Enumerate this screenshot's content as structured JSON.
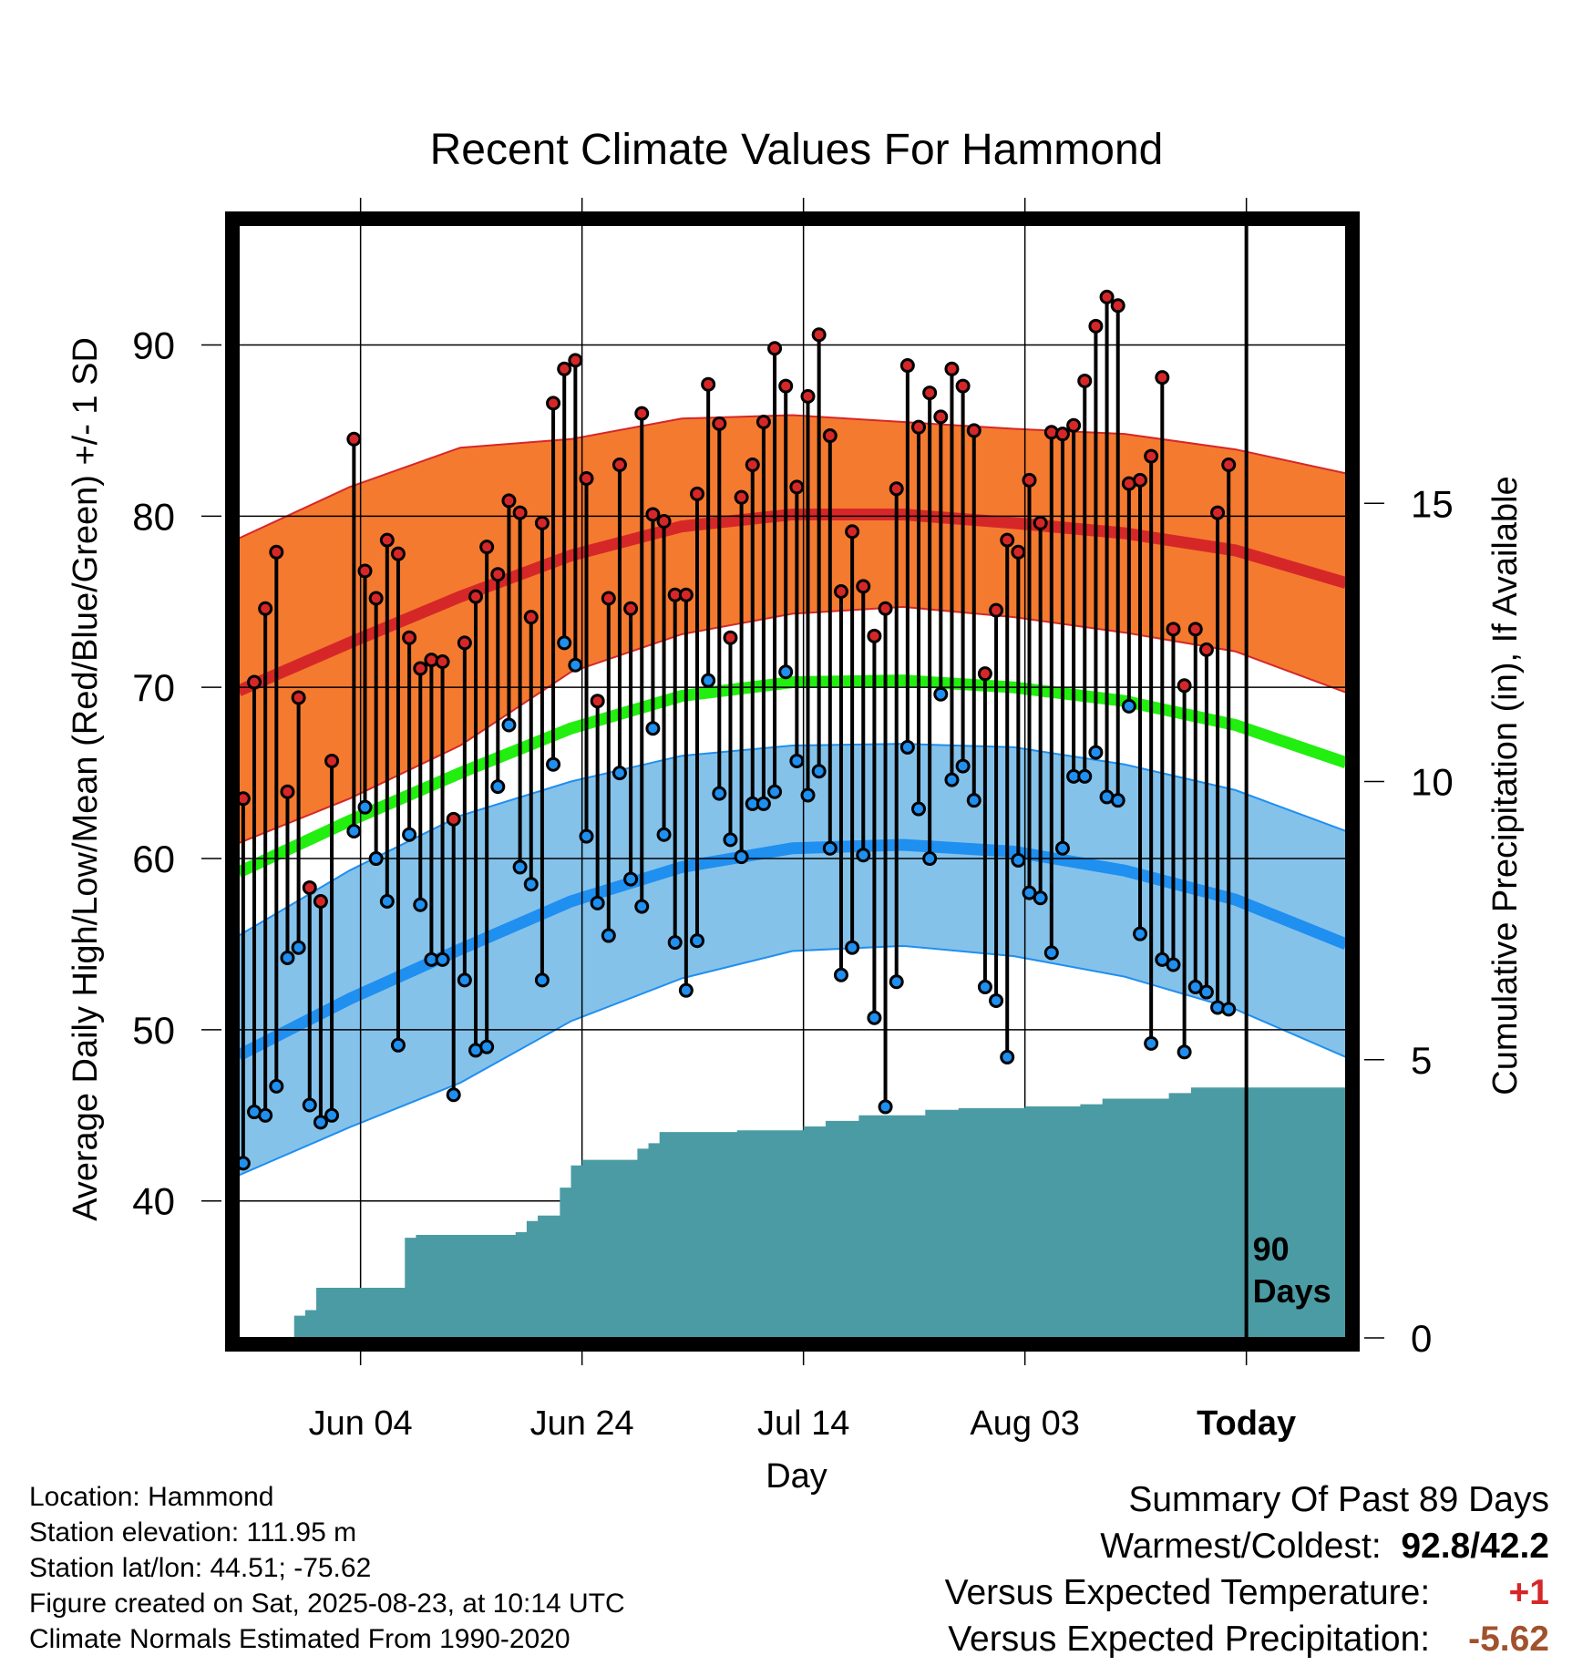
{
  "chart_data": {
    "type": "line",
    "title": "Recent Climate Values For Hammond",
    "xlabel": "Day",
    "ylabel": "Average Daily High/Low/Mean (Red/Blue/Green) +/- 1 SD",
    "y2label": "Cumulative Precipitation (in), If Available",
    "xticks": [
      "Jun 04",
      "Jun 24",
      "Jul 14",
      "Aug 03",
      "Today"
    ],
    "xtick_days": [
      11,
      31,
      51,
      71,
      91
    ],
    "xlim": [
      0,
      100
    ],
    "ylim": [
      32,
      97
    ],
    "yticks": [
      40,
      50,
      60,
      70,
      80,
      90
    ],
    "y2lim": [
      0,
      20
    ],
    "y2ticks": [
      0,
      5,
      10,
      15
    ],
    "marker_label": "90 Days",
    "grid": true,
    "colors": {
      "high": "#d62728",
      "high_band": "#f47a30",
      "low": "#1f8ff0",
      "low_band": "#85c2ea",
      "mean": "#22ee0f",
      "precip": "#4b9ba4",
      "high_dot": "#d62728",
      "low_dot": "#1f8ff0"
    },
    "normals": {
      "x": [
        0,
        10,
        20,
        30,
        40,
        50,
        60,
        70,
        80,
        90,
        100
      ],
      "high_mean": [
        69.8,
        72.6,
        75.3,
        77.7,
        79.4,
        80.1,
        80.1,
        79.6,
        79.0,
        78.0,
        76.1
      ],
      "high_sd": [
        8.9,
        9.1,
        8.7,
        6.8,
        6.3,
        5.8,
        5.4,
        5.5,
        5.8,
        5.9,
        6.4
      ],
      "low_mean": [
        48.5,
        51.8,
        54.7,
        57.5,
        59.5,
        60.6,
        60.8,
        60.4,
        59.3,
        57.6,
        55.0
      ],
      "low_sd": [
        7.0,
        7.5,
        7.8,
        7.0,
        6.5,
        6.0,
        5.9,
        6.1,
        6.2,
        6.4,
        6.6
      ],
      "mean": [
        59.2,
        62.2,
        65.0,
        67.6,
        69.5,
        70.3,
        70.4,
        70.0,
        69.2,
        67.8,
        65.6
      ]
    },
    "daily": {
      "high": [
        63.5,
        70.3,
        74.6,
        77.9,
        63.9,
        69.4,
        58.3,
        57.5,
        65.7,
        null,
        84.5,
        76.8,
        75.2,
        78.6,
        77.8,
        72.9,
        71.1,
        71.6,
        71.5,
        62.3,
        72.6,
        75.3,
        78.2,
        76.6,
        80.9,
        80.2,
        74.1,
        79.6,
        86.6,
        88.6,
        89.1,
        82.2,
        69.2,
        75.2,
        83.0,
        74.6,
        86.0,
        80.1,
        79.7,
        75.4,
        75.4,
        81.3,
        87.7,
        85.4,
        72.9,
        81.1,
        83.0,
        85.5,
        89.8,
        87.6,
        81.7,
        87.0,
        90.6,
        84.7,
        75.6,
        79.1,
        75.9,
        73.0,
        74.6,
        81.6,
        88.8,
        85.2,
        87.2,
        85.8,
        88.6,
        87.6,
        85.0,
        70.8,
        74.5,
        78.6,
        77.9,
        82.1,
        79.6,
        84.9,
        84.8,
        85.3,
        87.9,
        91.1,
        92.8,
        92.3,
        81.9,
        82.1,
        83.5,
        88.1,
        73.4,
        70.1,
        73.4,
        72.2,
        80.2,
        83.0
      ],
      "low": [
        42.2,
        45.2,
        45.0,
        46.7,
        54.2,
        54.8,
        45.6,
        44.6,
        45.0,
        null,
        61.6,
        63.0,
        60.0,
        57.5,
        49.1,
        61.4,
        57.3,
        54.1,
        54.1,
        46.2,
        52.9,
        48.8,
        49.0,
        64.2,
        67.8,
        59.5,
        58.5,
        52.9,
        65.5,
        72.6,
        71.3,
        61.3,
        57.4,
        55.5,
        65.0,
        58.8,
        57.2,
        67.6,
        61.4,
        55.1,
        52.3,
        55.2,
        70.4,
        63.8,
        61.1,
        60.1,
        63.2,
        63.2,
        63.9,
        70.9,
        65.7,
        63.7,
        65.1,
        60.6,
        53.2,
        54.8,
        60.2,
        50.7,
        45.5,
        52.8,
        66.5,
        62.9,
        60.0,
        69.6,
        64.6,
        65.4,
        63.4,
        52.5,
        51.7,
        48.4,
        59.9,
        58.0,
        57.7,
        54.5,
        60.6,
        64.8,
        64.8,
        66.2,
        63.6,
        63.4,
        68.9,
        55.6,
        49.2,
        54.1,
        53.8,
        48.7,
        52.5,
        52.2,
        51.3,
        51.2
      ]
    },
    "precip": {
      "x": [
        0,
        3,
        5,
        6,
        7,
        8,
        14,
        15,
        16,
        20,
        25,
        26,
        27,
        28,
        29,
        30,
        31,
        34,
        35,
        36,
        37,
        38,
        39,
        45,
        50,
        51,
        53,
        54,
        56,
        58,
        62,
        63,
        65,
        67,
        71,
        76,
        78,
        79,
        82,
        84,
        86,
        87,
        90,
        100
      ],
      "values": [
        0.0,
        0.0,
        0.4,
        0.5,
        0.9,
        0.9,
        0.9,
        1.8,
        1.85,
        1.85,
        1.9,
        2.1,
        2.2,
        2.2,
        2.7,
        3.1,
        3.2,
        3.2,
        3.2,
        3.4,
        3.5,
        3.7,
        3.7,
        3.73,
        3.73,
        3.8,
        3.9,
        3.9,
        4.0,
        4.0,
        4.1,
        4.1,
        4.13,
        4.13,
        4.16,
        4.2,
        4.3,
        4.3,
        4.3,
        4.4,
        4.5,
        4.5,
        4.5,
        4.5
      ]
    }
  },
  "footer": {
    "location": "Location: Hammond",
    "elevation": "Station elevation: 111.95 m",
    "latlon": "Station lat/lon: 44.51; -75.62",
    "created": "Figure created on Sat, 2025-08-23, at 10:14 UTC",
    "normals": "Climate Normals Estimated From 1990-2020"
  },
  "summary": {
    "title": "Summary Of Past 89 Days",
    "warm_cold_label": "Warmest/Coldest:",
    "warm_cold_value": "92.8/42.2",
    "temp_label": "Versus Expected Temperature:",
    "temp_value": "+1",
    "temp_color": "#d62728",
    "precip_label": "Versus Expected Precipitation:",
    "precip_value": "-5.62",
    "precip_color": "#a0522d"
  }
}
